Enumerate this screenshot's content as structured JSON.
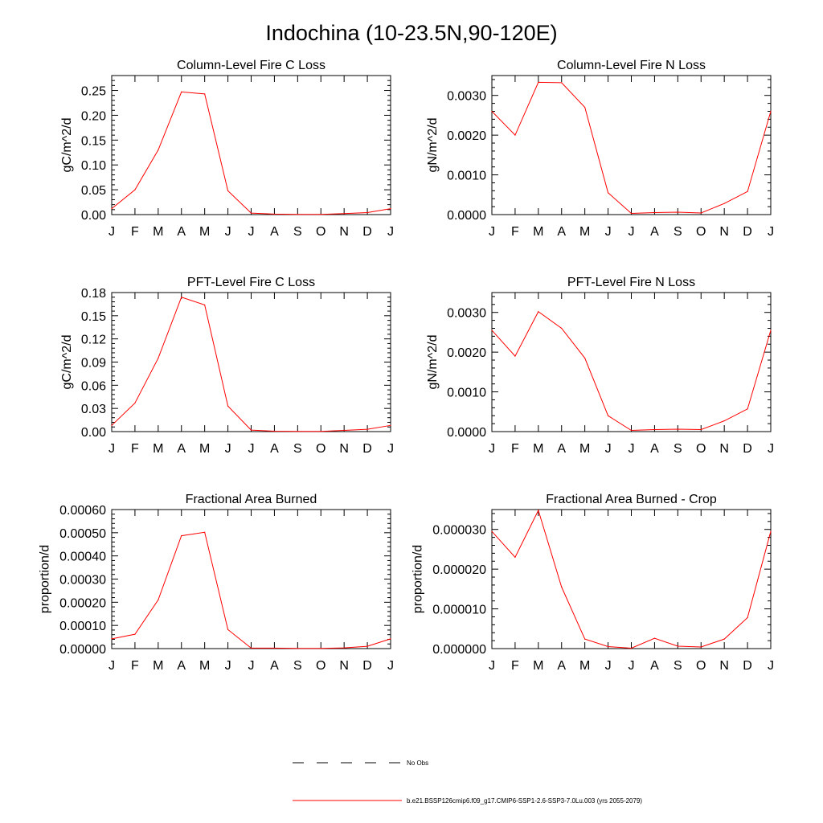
{
  "figure": {
    "title": "Indochina (10-23.5N,90-120E)",
    "line_color": "#ff0000"
  },
  "legend": {
    "obs_label": "No Obs",
    "model_label": "b.e21.BSSP126cmip6.f09_g17.CMIP6-SSP1-2.6-SSP3-7.0Lu.003 (yrs 2055-2079)"
  },
  "chart_data": [
    {
      "type": "line",
      "title": "Column-Level Fire C Loss",
      "ylabel": "gC/m^2/d",
      "categories": [
        "J",
        "F",
        "M",
        "A",
        "M",
        "J",
        "J",
        "A",
        "S",
        "O",
        "N",
        "D",
        "J"
      ],
      "ylim": [
        0,
        0.28
      ],
      "yticks": [
        "0.00",
        "0.05",
        "0.10",
        "0.15",
        "0.20",
        "0.25"
      ],
      "ytick_values": [
        0,
        0.05,
        0.1,
        0.15,
        0.2,
        0.25
      ],
      "values": [
        0.012,
        0.05,
        0.13,
        0.247,
        0.243,
        0.048,
        0.003,
        0.001,
        0.0005,
        0.0005,
        0.002,
        0.004,
        0.012
      ]
    },
    {
      "type": "line",
      "title": "Column-Level Fire N Loss",
      "ylabel": "gN/m^2/d",
      "categories": [
        "J",
        "F",
        "M",
        "A",
        "M",
        "J",
        "J",
        "A",
        "S",
        "O",
        "N",
        "D",
        "J"
      ],
      "ylim": [
        0,
        0.0035
      ],
      "yticks": [
        "0.0000",
        "0.0010",
        "0.0020",
        "0.0030"
      ],
      "ytick_values": [
        0,
        0.001,
        0.002,
        0.003
      ],
      "values": [
        0.0026,
        0.002,
        0.00333,
        0.00332,
        0.0027,
        0.00055,
        3e-05,
        5e-05,
        6e-05,
        4e-05,
        0.00028,
        0.00058,
        0.0026
      ]
    },
    {
      "type": "line",
      "title": "PFT-Level Fire C Loss",
      "ylabel": "gC/m^2/d",
      "categories": [
        "J",
        "F",
        "M",
        "A",
        "M",
        "J",
        "J",
        "A",
        "S",
        "O",
        "N",
        "D",
        "J"
      ],
      "ylim": [
        0,
        0.18
      ],
      "yticks": [
        "0.00",
        "0.03",
        "0.06",
        "0.09",
        "0.12",
        "0.15",
        "0.18"
      ],
      "ytick_values": [
        0,
        0.03,
        0.06,
        0.09,
        0.12,
        0.15,
        0.18
      ],
      "values": [
        0.008,
        0.037,
        0.095,
        0.174,
        0.164,
        0.033,
        0.002,
        0.0005,
        0.0003,
        0.0003,
        0.0015,
        0.003,
        0.008
      ]
    },
    {
      "type": "line",
      "title": "PFT-Level Fire N Loss",
      "ylabel": "gN/m^2/d",
      "categories": [
        "J",
        "F",
        "M",
        "A",
        "M",
        "J",
        "J",
        "A",
        "S",
        "O",
        "N",
        "D",
        "J"
      ],
      "ylim": [
        0,
        0.0035
      ],
      "yticks": [
        "0.0000",
        "0.0010",
        "0.0020",
        "0.0030"
      ],
      "ytick_values": [
        0,
        0.001,
        0.002,
        0.003
      ],
      "values": [
        0.00255,
        0.0019,
        0.00302,
        0.0026,
        0.00185,
        0.0004,
        3e-05,
        5e-05,
        6e-05,
        5e-05,
        0.00027,
        0.00057,
        0.00255
      ]
    },
    {
      "type": "line",
      "title": "Fractional Area Burned",
      "ylabel": "proportion/d",
      "categories": [
        "J",
        "F",
        "M",
        "A",
        "M",
        "J",
        "J",
        "A",
        "S",
        "O",
        "N",
        "D",
        "J"
      ],
      "ylim": [
        0,
        0.0006
      ],
      "yticks": [
        "0.00000",
        "0.00010",
        "0.00020",
        "0.00030",
        "0.00040",
        "0.00050",
        "0.00060"
      ],
      "ytick_values": [
        0,
        0.0001,
        0.0002,
        0.0003,
        0.0004,
        0.0005,
        0.0006
      ],
      "values": [
        4.2e-05,
        6.2e-05,
        0.00021,
        0.000487,
        0.000502,
        8.2e-05,
        2e-06,
        2e-06,
        1e-06,
        1e-06,
        3e-06,
        1e-05,
        4.2e-05
      ]
    },
    {
      "type": "line",
      "title": "Fractional Area Burned - Crop",
      "ylabel": "proportion/d",
      "categories": [
        "J",
        "F",
        "M",
        "A",
        "M",
        "J",
        "J",
        "A",
        "S",
        "O",
        "N",
        "D",
        "J"
      ],
      "ylim": [
        0,
        3.5e-05
      ],
      "yticks": [
        "0.000000",
        "0.000010",
        "0.000020",
        "0.000030"
      ],
      "ytick_values": [
        0,
        1e-05,
        2e-05,
        3e-05
      ],
      "values": [
        2.95e-05,
        2.3e-05,
        3.48e-05,
        1.55e-05,
        2.4e-06,
        5e-07,
        1e-07,
        2.6e-06,
        6e-07,
        4e-07,
        2.4e-06,
        7.8e-06,
        2.95e-05
      ]
    }
  ]
}
